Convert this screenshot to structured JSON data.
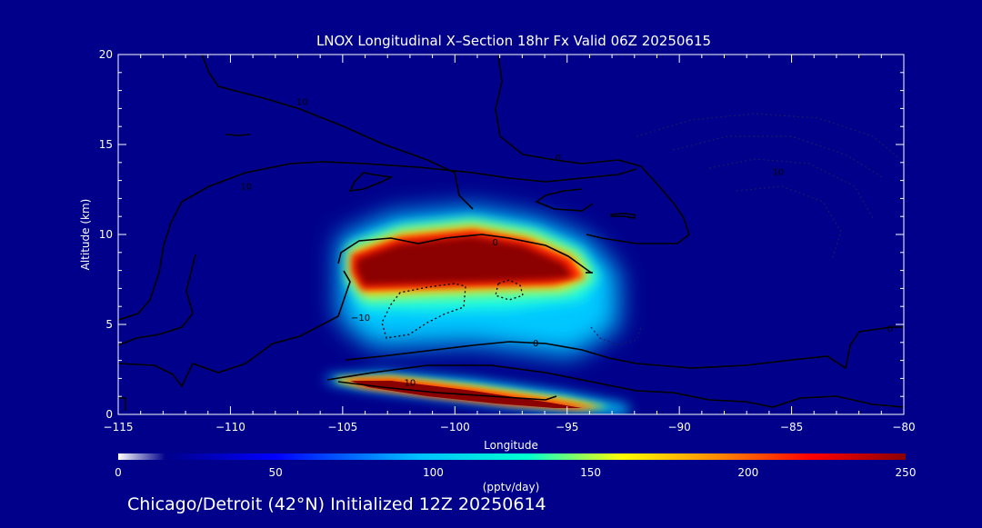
{
  "chart_data": {
    "type": "heatmap",
    "title": "LNOX Longitudinal X–Section 18hr  Fx Valid 06Z 20250615",
    "xlabel": "Longitude",
    "ylabel": "Altitude (km)",
    "xlim": [
      -115,
      -80
    ],
    "ylim": [
      0,
      20
    ],
    "x_ticks": [
      -115,
      -110,
      -105,
      -100,
      -95,
      -90,
      -85,
      -80
    ],
    "y_ticks": [
      0,
      5,
      10,
      15,
      20
    ],
    "x_tick_labels": [
      "−115",
      "−110",
      "−105",
      "−100",
      "−95",
      "−90",
      "−85",
      "−80"
    ],
    "y_tick_labels": [
      "0",
      "5",
      "10",
      "15",
      "20"
    ],
    "colorbar": {
      "label": "(pptv/day)",
      "range": [
        0,
        250
      ],
      "ticks": [
        0,
        50,
        100,
        150,
        200,
        250
      ]
    },
    "field_features": [
      {
        "name": "upper maximum",
        "lon_range": [
          -105.2,
          -94.2
        ],
        "alt_range": [
          5.5,
          10.7
        ],
        "peak_value": 250
      },
      {
        "name": "low-level maximum",
        "lon_range": [
          -105.5,
          -92.5
        ],
        "alt_range": [
          0.2,
          2.2
        ],
        "peak_value": 250
      }
    ],
    "contour_labels": [
      {
        "text": "10",
        "lon": -106.8,
        "alt": 17.2
      },
      {
        "text": "10",
        "lon": -109.3,
        "alt": 12.5
      },
      {
        "text": "0",
        "lon": -95.4,
        "alt": 14.1
      },
      {
        "text": "10",
        "lon": -85.6,
        "alt": 13.3
      },
      {
        "text": "0",
        "lon": -98.2,
        "alt": 9.4
      },
      {
        "text": "−10",
        "lon": -104.2,
        "alt": 5.2
      },
      {
        "text": "0",
        "lon": -96.4,
        "alt": 3.8
      },
      {
        "text": "10",
        "lon": -102.0,
        "alt": 1.6
      },
      {
        "text": "0",
        "lon": -80.6,
        "alt": 4.6
      }
    ]
  },
  "footer": "Chicago/Detroit (42°N) Initialized 12Z 20250614",
  "colors": {
    "background": "#00008b",
    "frame": "#ffffff",
    "contour": "#000000"
  }
}
